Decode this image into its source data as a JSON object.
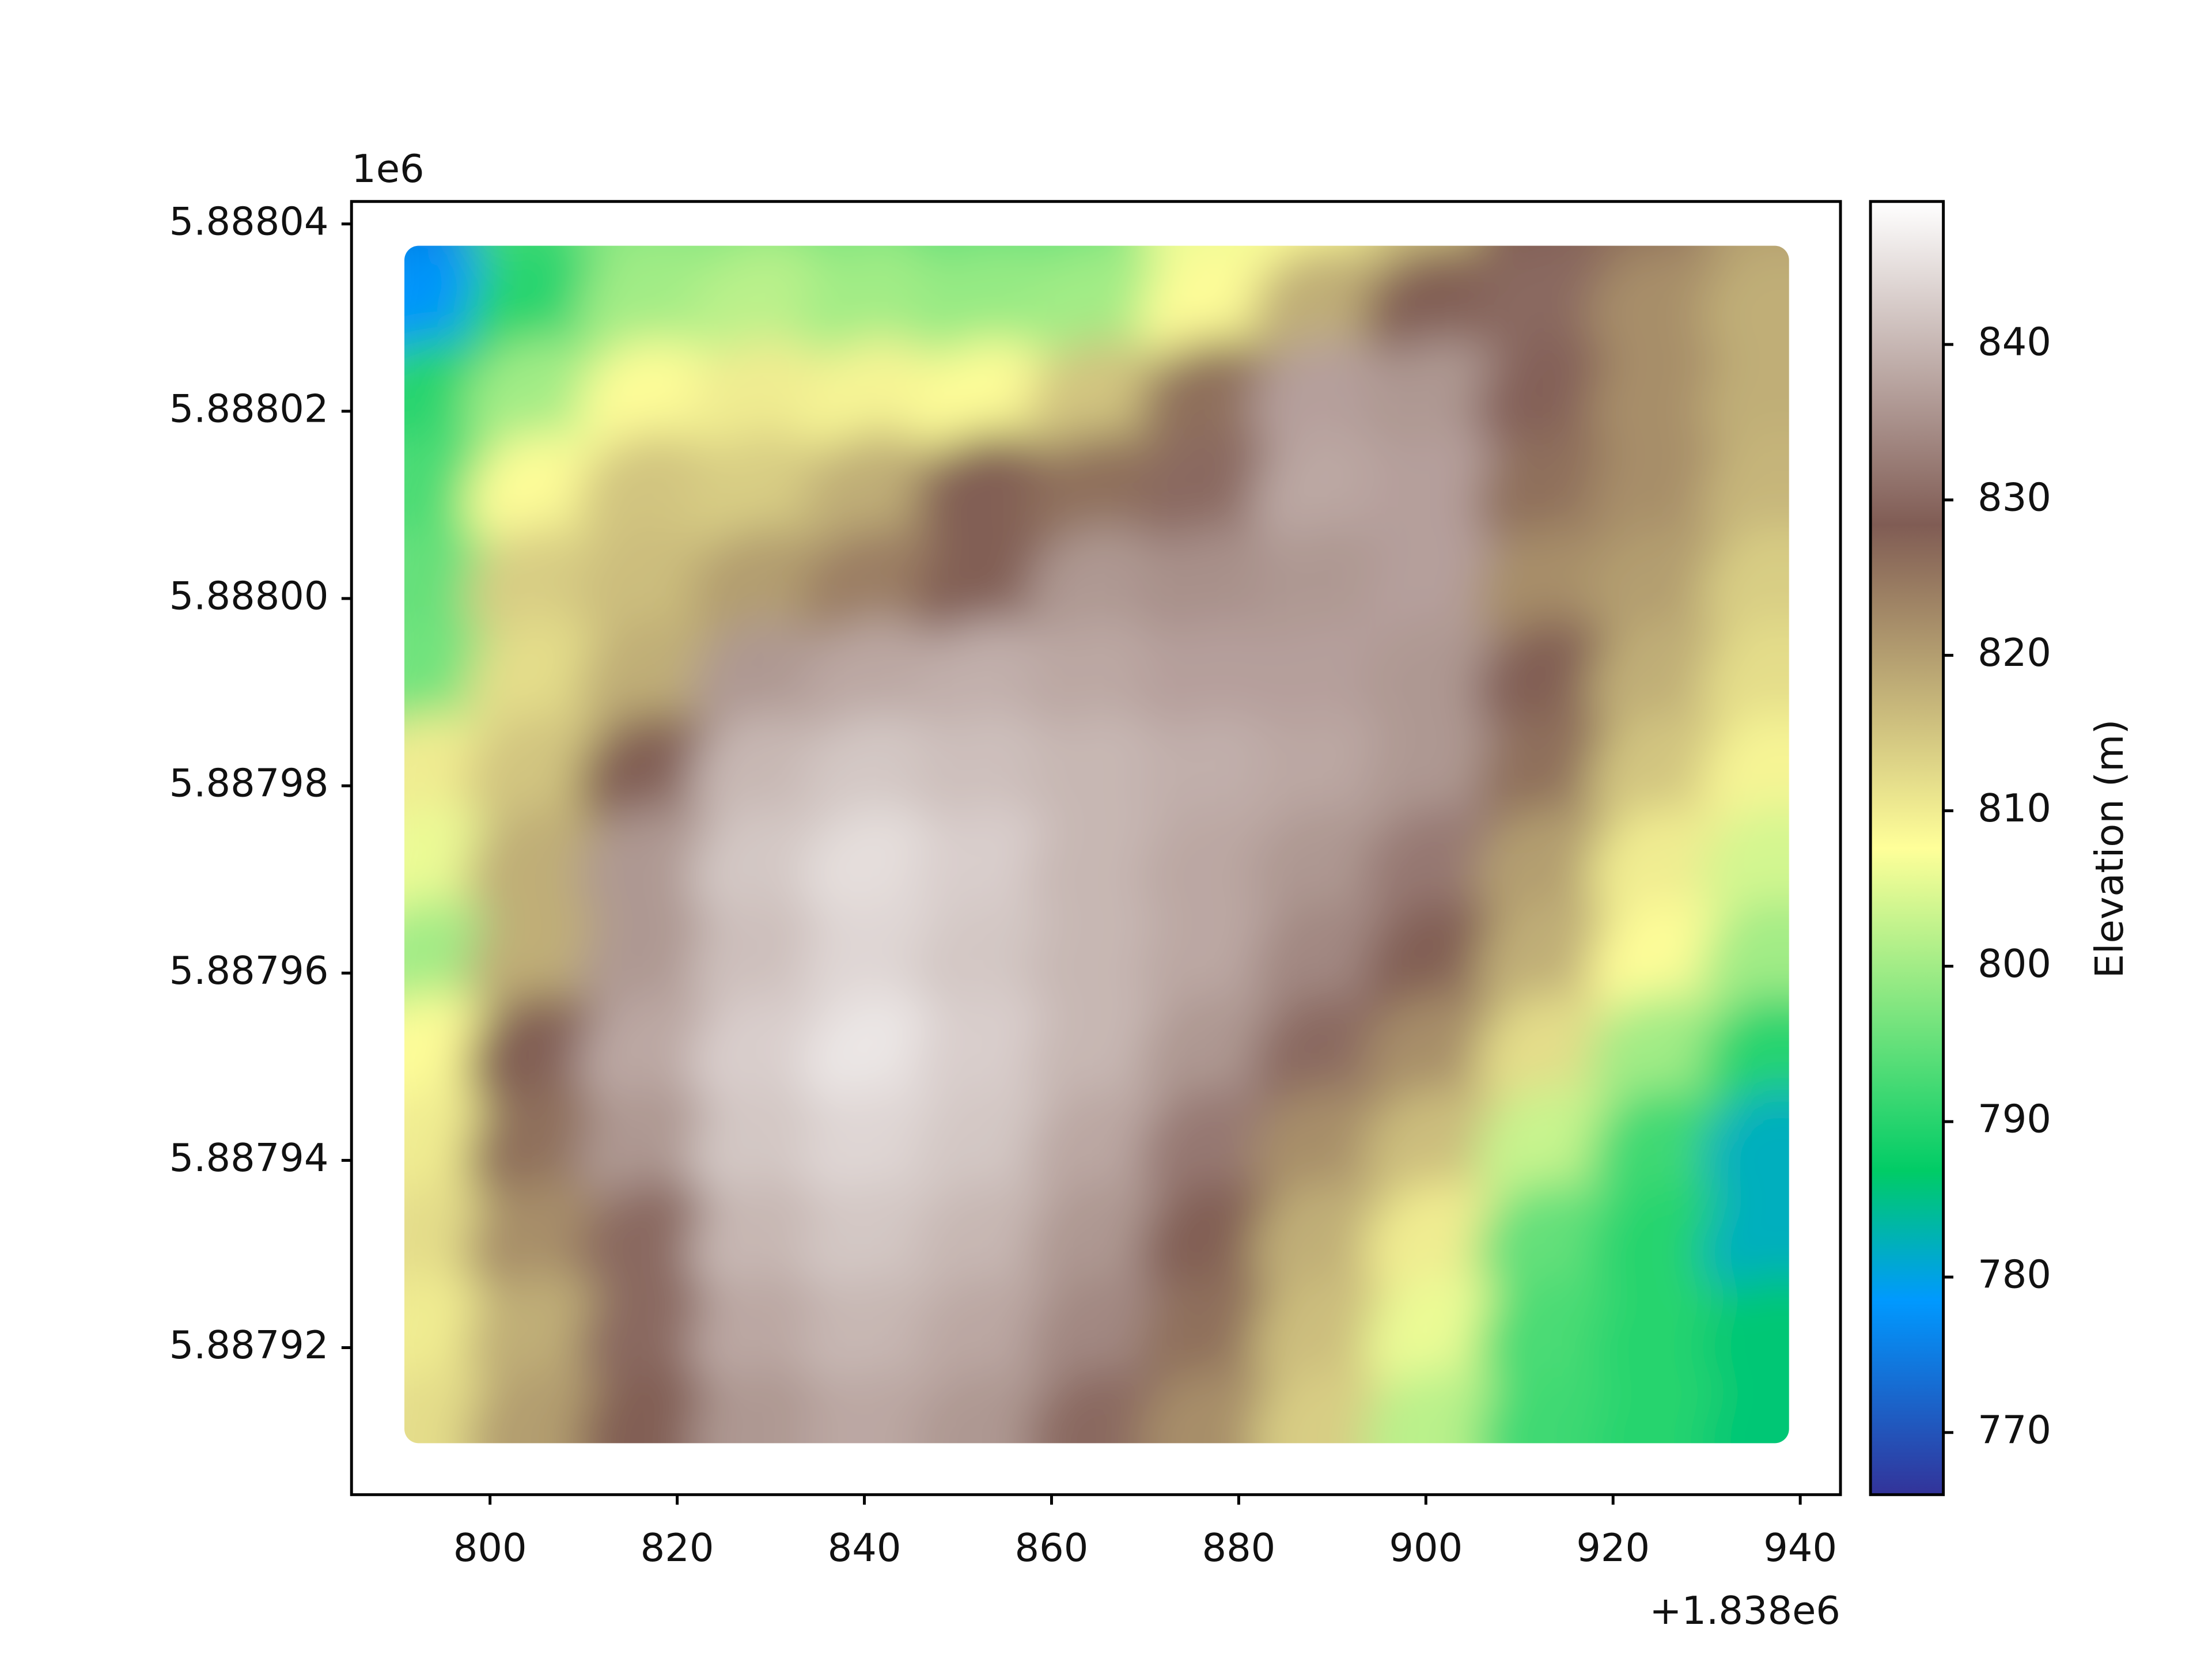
{
  "chart_data": {
    "type": "scatter",
    "x_offset_label": "+1.838e6",
    "y_offset_label": "1e6",
    "x": [
      794,
      806,
      818,
      830,
      842,
      854,
      866,
      878,
      890,
      902,
      914,
      926,
      938
    ],
    "y": [
      5.88804,
      5.88803,
      5.88802,
      5.88801,
      5.888,
      5.88799,
      5.88798,
      5.88797,
      5.88796,
      5.88795,
      5.88794,
      5.88793,
      5.88792,
      5.88791
    ],
    "values": [
      [
        775,
        792,
        798,
        798,
        797,
        795,
        796,
        806,
        808,
        815,
        828,
        826,
        820
      ],
      [
        778,
        790,
        800,
        802,
        800,
        799,
        800,
        808,
        818,
        828,
        830,
        822,
        818
      ],
      [
        790,
        800,
        808,
        810,
        809,
        808,
        815,
        826,
        837,
        836,
        829,
        822,
        818
      ],
      [
        793,
        808,
        815,
        814,
        818,
        828,
        826,
        830,
        838,
        837,
        826,
        822,
        817
      ],
      [
        795,
        814,
        816,
        820,
        824,
        828,
        836,
        835,
        836,
        837,
        822,
        820,
        814
      ],
      [
        796,
        812,
        818,
        836,
        838,
        839,
        838,
        837,
        837,
        836,
        828,
        818,
        812
      ],
      [
        810,
        815,
        828,
        840,
        842,
        841,
        840,
        839,
        838,
        836,
        826,
        815,
        809
      ],
      [
        806,
        818,
        836,
        842,
        845,
        843,
        840,
        838,
        836,
        832,
        820,
        810,
        804
      ],
      [
        800,
        818,
        836,
        841,
        844,
        842,
        840,
        838,
        834,
        828,
        818,
        808,
        800
      ],
      [
        808,
        828,
        838,
        843,
        846,
        843,
        840,
        836,
        830,
        822,
        812,
        800,
        790
      ],
      [
        810,
        826,
        836,
        842,
        844,
        842,
        838,
        832,
        822,
        816,
        803,
        792,
        782
      ],
      [
        812,
        822,
        830,
        840,
        842,
        840,
        836,
        828,
        818,
        810,
        795,
        790,
        782
      ],
      [
        810,
        818,
        830,
        838,
        840,
        838,
        834,
        826,
        816,
        806,
        793,
        790,
        786
      ],
      [
        812,
        820,
        828,
        836,
        838,
        836,
        830,
        822,
        814,
        802,
        792,
        790,
        786
      ]
    ],
    "xlim": [
      785.2,
      944.3
    ],
    "ylim": [
      5.8879043,
      5.8880424
    ],
    "xticks": [
      800,
      820,
      840,
      860,
      880,
      900,
      920,
      940
    ],
    "yticks": [
      5.88792,
      5.88794,
      5.88796,
      5.88798,
      {
        "value": 5.888,
        "label": "5.88800"
      },
      5.88802,
      5.88804
    ],
    "colorbar_label": "Elevation (m)",
    "clim": [
      766,
      849.2
    ],
    "cticks": [
      770,
      780,
      790,
      800,
      810,
      820,
      830,
      840
    ],
    "colormap": [
      [
        0,
        "#333399"
      ],
      [
        0.15,
        "#0099ff"
      ],
      [
        0.25,
        "#00cc66"
      ],
      [
        0.5,
        "#ffff99"
      ],
      [
        0.75,
        "#805c54"
      ],
      [
        1,
        "#ffffff"
      ]
    ]
  }
}
